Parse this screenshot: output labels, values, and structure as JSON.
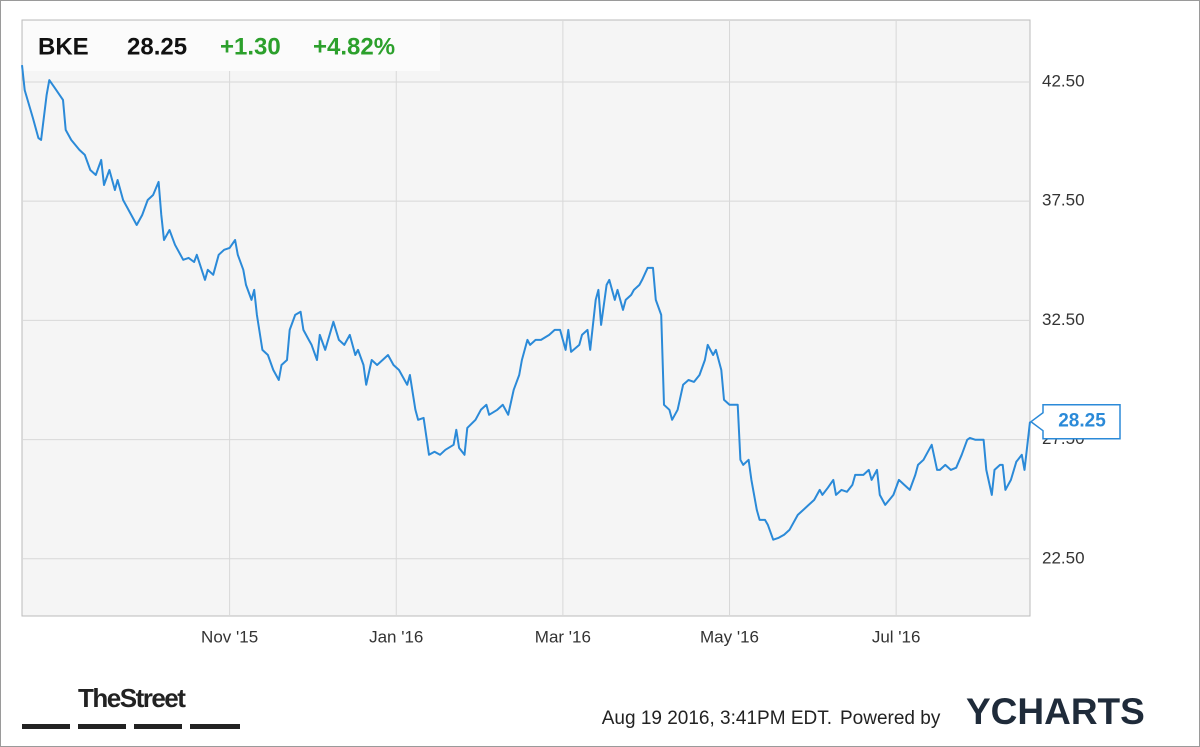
{
  "chart_data": {
    "type": "line",
    "symbol": "BKE",
    "price": "28.25",
    "change": "+1.30",
    "change_pct": "+4.82%",
    "x": [
      0,
      1,
      4,
      6,
      7,
      9,
      10,
      12,
      15,
      16,
      18,
      21,
      23,
      25,
      27,
      29,
      30,
      32,
      34,
      35,
      37,
      40,
      42,
      44,
      46,
      48,
      50,
      51,
      52,
      54,
      56,
      59,
      61,
      63,
      64,
      67,
      68,
      70,
      72,
      74,
      76,
      78,
      79,
      81,
      82,
      84,
      85,
      86,
      88,
      90,
      92,
      94,
      95,
      97,
      98,
      100,
      102,
      103,
      105,
      106,
      108,
      109,
      111,
      114,
      116,
      118,
      120,
      122,
      123,
      125,
      126,
      128,
      130,
      132,
      134,
      136,
      138,
      141,
      142,
      144,
      145,
      147,
      149,
      151,
      153,
      155,
      158,
      159,
      160,
      162,
      163,
      166,
      168,
      170,
      171,
      174,
      176,
      178,
      180,
      182,
      183,
      185,
      186,
      188,
      190,
      193,
      195,
      197,
      199,
      200,
      201,
      204,
      205,
      207,
      208,
      210,
      211,
      212,
      214,
      215,
      217,
      218,
      220,
      221,
      223,
      224,
      226,
      227,
      229,
      231,
      232,
      234,
      235,
      237,
      238,
      240,
      242,
      244,
      246,
      248,
      250,
      251,
      253,
      254,
      256,
      257,
      259,
      262,
      263,
      264,
      266,
      267,
      269,
      270,
      272,
      273,
      275,
      277,
      279,
      281,
      284,
      286,
      288,
      290,
      292,
      293,
      295,
      297,
      298,
      300,
      302,
      304,
      305,
      308,
      310,
      311,
      313,
      314,
      316,
      319,
      321,
      323,
      325,
      327,
      328,
      330,
      331,
      333,
      335,
      336,
      338,
      340,
      342,
      344,
      346,
      347,
      349,
      352,
      353,
      355,
      356,
      358,
      359,
      360,
      362,
      364,
      366,
      367,
      369
    ],
    "series": [
      {
        "name": "BKE",
        "color": "#2b8ad8",
        "values": [
          43.21,
          42.16,
          40.99,
          40.15,
          40.07,
          41.95,
          42.58,
          42.25,
          41.75,
          40.49,
          40.07,
          39.65,
          39.44,
          38.81,
          38.6,
          39.23,
          38.18,
          38.81,
          37.97,
          38.39,
          37.55,
          36.92,
          36.5,
          36.92,
          37.55,
          37.76,
          38.31,
          36.92,
          35.87,
          36.29,
          35.67,
          35.04,
          35.12,
          34.95,
          35.25,
          34.2,
          34.62,
          34.41,
          35.25,
          35.46,
          35.54,
          35.87,
          35.25,
          34.62,
          33.99,
          33.36,
          33.78,
          32.73,
          31.26,
          31.05,
          30.42,
          30.0,
          30.63,
          30.84,
          32.1,
          32.73,
          32.86,
          32.1,
          31.68,
          31.47,
          30.84,
          31.89,
          31.26,
          32.44,
          31.68,
          31.47,
          31.89,
          31.05,
          31.26,
          30.63,
          29.8,
          30.84,
          30.63,
          30.84,
          31.05,
          30.63,
          30.42,
          29.8,
          30.21,
          28.75,
          28.33,
          28.41,
          26.86,
          26.99,
          26.86,
          27.07,
          27.28,
          27.91,
          27.15,
          26.86,
          27.99,
          28.33,
          28.75,
          28.96,
          28.54,
          28.75,
          28.96,
          28.54,
          29.59,
          30.21,
          30.84,
          31.68,
          31.47,
          31.68,
          31.68,
          31.89,
          32.1,
          32.1,
          31.26,
          32.1,
          31.18,
          31.47,
          31.89,
          32.1,
          31.26,
          33.36,
          33.78,
          32.31,
          33.99,
          34.2,
          33.36,
          33.78,
          32.94,
          33.36,
          33.57,
          33.78,
          33.99,
          34.2,
          34.7,
          34.7,
          33.36,
          32.73,
          28.96,
          28.75,
          28.33,
          28.75,
          29.8,
          30.0,
          29.92,
          30.21,
          30.84,
          31.47,
          31.05,
          31.26,
          30.42,
          29.17,
          28.96,
          28.96,
          26.65,
          26.44,
          26.65,
          25.81,
          24.55,
          24.13,
          24.13,
          23.93,
          23.3,
          23.38,
          23.51,
          23.72,
          24.34,
          24.55,
          24.76,
          24.97,
          25.39,
          25.18,
          25.48,
          25.81,
          25.18,
          25.39,
          25.31,
          25.6,
          26.02,
          26.02,
          26.23,
          25.81,
          26.23,
          25.18,
          24.76,
          25.18,
          25.81,
          25.6,
          25.39,
          26.02,
          26.44,
          26.65,
          26.86,
          27.28,
          26.23,
          26.23,
          26.44,
          26.23,
          26.32,
          26.86,
          27.49,
          27.57,
          27.49,
          27.49,
          26.23,
          25.18,
          26.23,
          26.44,
          26.44,
          25.39,
          25.81,
          26.57,
          26.86,
          26.23,
          28.25
        ]
      }
    ],
    "xlim": [
      0,
      369
    ],
    "xticks": [
      {
        "value": 76,
        "label": "Nov '15"
      },
      {
        "value": 137,
        "label": "Jan '16"
      },
      {
        "value": 198,
        "label": "Mar '16"
      },
      {
        "value": 259,
        "label": "May '16"
      },
      {
        "value": 320,
        "label": "Jul '16"
      }
    ],
    "ylim": [
      20.1,
      45.1
    ],
    "yticks": [
      {
        "value": 22.5,
        "label": "22.50"
      },
      {
        "value": 27.5,
        "label": "27.50"
      },
      {
        "value": 32.5,
        "label": "32.50"
      },
      {
        "value": 37.5,
        "label": "37.50"
      },
      {
        "value": 42.5,
        "label": "42.50"
      }
    ],
    "grid": true,
    "change_color": "#2ca02c"
  },
  "footer": {
    "source_logo": "TheStreet",
    "timestamp": "Aug 19 2016, 3:41PM EDT.",
    "powered_by": "Powered by",
    "brand": "YCHARTS"
  }
}
